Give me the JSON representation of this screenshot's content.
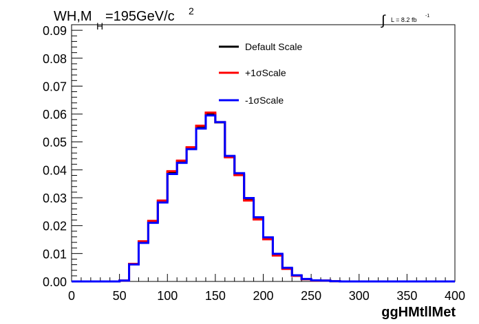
{
  "chart_data": {
    "type": "line",
    "title_main": "WH,M",
    "title_sub": "H",
    "title_rest": "=195GeV/c",
    "title_sup": "2",
    "lumi_prefix": "∫",
    "lumi_text": "L = 8.2 fb",
    "lumi_sup": "-1",
    "xlabel": "ggHMtllMet",
    "ylabel": "",
    "xlim": [
      0,
      400
    ],
    "ylim": [
      0,
      0.092
    ],
    "x_ticks": [
      "0",
      "50",
      "100",
      "150",
      "200",
      "250",
      "300",
      "350",
      "400"
    ],
    "y_ticks": [
      "0.00",
      "0.01",
      "0.02",
      "0.03",
      "0.04",
      "0.05",
      "0.06",
      "0.07",
      "0.08",
      "0.09"
    ],
    "bin_edges": [
      0,
      10,
      20,
      30,
      40,
      50,
      60,
      70,
      80,
      90,
      100,
      110,
      120,
      130,
      140,
      150,
      160,
      170,
      180,
      190,
      200,
      210,
      220,
      230,
      240,
      250,
      260,
      270,
      280,
      290,
      300,
      310,
      320,
      330,
      340,
      350,
      360,
      370,
      380,
      390,
      400
    ],
    "legend_position": "top-center",
    "series": [
      {
        "name": "Default Scale",
        "color": "#000000",
        "values": [
          0,
          0,
          0,
          0,
          0,
          0.0003,
          0.0062,
          0.0142,
          0.0215,
          0.0288,
          0.0392,
          0.043,
          0.0478,
          0.0555,
          0.06,
          0.057,
          0.0447,
          0.0383,
          0.0293,
          0.0225,
          0.0153,
          0.0095,
          0.0046,
          0.0021,
          0.0008,
          0.0003,
          0.0003,
          0.0001,
          0,
          0,
          0,
          0,
          0,
          0,
          0,
          0,
          0,
          0,
          0,
          0
        ]
      },
      {
        "name": "+1σScale",
        "color": "#ff0000",
        "values": [
          0,
          0,
          0,
          0,
          0,
          0.0003,
          0.0063,
          0.0144,
          0.0217,
          0.029,
          0.0395,
          0.0433,
          0.0481,
          0.0558,
          0.0605,
          0.0571,
          0.0445,
          0.0381,
          0.029,
          0.0222,
          0.0151,
          0.0093,
          0.0045,
          0.002,
          0.0008,
          0.0003,
          0.0003,
          0.0001,
          0,
          0,
          0,
          0,
          0,
          0,
          0,
          0,
          0,
          0,
          0,
          0
        ]
      },
      {
        "name": "-1σScale",
        "color": "#0000ff",
        "values": [
          0,
          0,
          0,
          0,
          0,
          0.0003,
          0.0061,
          0.0138,
          0.021,
          0.0283,
          0.0385,
          0.0425,
          0.0474,
          0.0548,
          0.0595,
          0.0571,
          0.045,
          0.0388,
          0.0299,
          0.023,
          0.0158,
          0.0099,
          0.0049,
          0.0022,
          0.0009,
          0.0004,
          0.0003,
          0.0001,
          0,
          0,
          0,
          0,
          0,
          0,
          0,
          0,
          0,
          0,
          0,
          0
        ]
      }
    ]
  }
}
